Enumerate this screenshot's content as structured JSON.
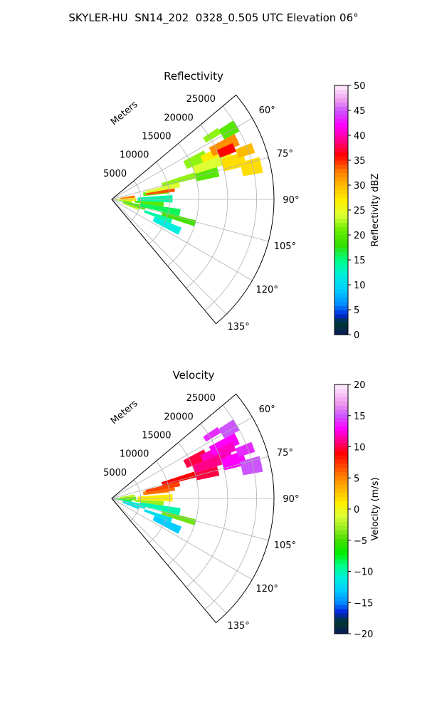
{
  "figure": {
    "suptitle": "SKYLER-HU  SN14_202  0328_0.505 UTC Elevation 06°"
  },
  "chart_data": [
    {
      "type": "heatmap",
      "projection": "polar-sector",
      "title": "Reflectivity",
      "radial_label": "Meters",
      "radial_ticks": [
        5000,
        10000,
        15000,
        20000,
        25000
      ],
      "radial_tick_labels": [
        "5000",
        "10000",
        "15000",
        "20000",
        "25000"
      ],
      "rmax": 28000,
      "theta_range_deg": [
        50,
        140
      ],
      "theta_ticks": [
        60,
        75,
        90,
        105,
        120,
        135
      ],
      "theta_tick_labels": [
        "60°",
        "75°",
        "90°",
        "105°",
        "120°",
        "135°"
      ],
      "grid": true,
      "colorbar": {
        "label": "Reflectivity dBZ",
        "range": [
          0,
          50
        ],
        "ticks": [
          0,
          5,
          10,
          15,
          20,
          25,
          30,
          35,
          40,
          45,
          50
        ],
        "tick_labels": [
          "0",
          "5",
          "10",
          "15",
          "20",
          "25",
          "30",
          "35",
          "40",
          "45",
          "50"
        ],
        "stops": [
          [
            0,
            "#0a1a5c"
          ],
          [
            2.5,
            "#003a2a"
          ],
          [
            4,
            "#0022dd"
          ],
          [
            6,
            "#0088ff"
          ],
          [
            9,
            "#00ccff"
          ],
          [
            12,
            "#00eedd"
          ],
          [
            15,
            "#00ff88"
          ],
          [
            18,
            "#33dd00"
          ],
          [
            21,
            "#66ee00"
          ],
          [
            24,
            "#ddff33"
          ],
          [
            27,
            "#ffee00"
          ],
          [
            30,
            "#ffbb00"
          ],
          [
            33,
            "#ff7700"
          ],
          [
            36,
            "#ff0000"
          ],
          [
            39,
            "#ff0088"
          ],
          [
            42,
            "#ff00ff"
          ],
          [
            45,
            "#cc55ff"
          ],
          [
            47,
            "#ee99ee"
          ],
          [
            50,
            "#fff0ff"
          ]
        ]
      },
      "cells": [
        {
          "theta": [
            86,
            95
          ],
          "r": [
            200,
            4200
          ],
          "value": 27
        },
        {
          "theta": [
            80,
            86
          ],
          "r": [
            1500,
            4000
          ],
          "value": 33
        },
        {
          "theta": [
            95,
            100
          ],
          "r": [
            300,
            3500
          ],
          "value": 22
        },
        {
          "theta": [
            100,
            108
          ],
          "r": [
            2000,
            6000
          ],
          "value": 20
        },
        {
          "theta": [
            108,
            112
          ],
          "r": [
            2000,
            5000
          ],
          "value": 23
        },
        {
          "theta": [
            86,
            93
          ],
          "r": [
            4500,
            10500
          ],
          "value": 14
        },
        {
          "theta": [
            93,
            98
          ],
          "r": [
            4000,
            9000
          ],
          "value": 20
        },
        {
          "theta": [
            78,
            84
          ],
          "r": [
            5500,
            10000
          ],
          "value": 21
        },
        {
          "theta": [
            76,
            80
          ],
          "r": [
            6000,
            12000
          ],
          "value": 24
        },
        {
          "theta": [
            80,
            83
          ],
          "r": [
            6000,
            11000
          ],
          "value": 34
        },
        {
          "theta": [
            72,
            76
          ],
          "r": [
            9000,
            15000
          ],
          "value": 22
        },
        {
          "theta": [
            98,
            104
          ],
          "r": [
            5000,
            12000
          ],
          "value": 16
        },
        {
          "theta": [
            104,
            108
          ],
          "r": [
            9000,
            15000
          ],
          "value": 19
        },
        {
          "theta": [
            108,
            112
          ],
          "r": [
            6000,
            11000
          ],
          "value": 14
        },
        {
          "theta": [
            112,
            118
          ],
          "r": [
            8000,
            13000
          ],
          "value": 12
        },
        {
          "theta": [
            62,
            68
          ],
          "r": [
            14000,
            18000
          ],
          "value": 22
        },
        {
          "theta": [
            64,
            70
          ],
          "r": [
            17000,
            22000
          ],
          "value": 27
        },
        {
          "theta": [
            62,
            67
          ],
          "r": [
            19000,
            24000
          ],
          "value": 32
        },
        {
          "theta": [
            68,
            73
          ],
          "r": [
            15000,
            21000
          ],
          "value": 24
        },
        {
          "theta": [
            70,
            76
          ],
          "r": [
            20000,
            24000
          ],
          "value": 28
        },
        {
          "theta": [
            73,
            78
          ],
          "r": [
            15000,
            19000
          ],
          "value": 20
        },
        {
          "theta": [
            74,
            80
          ],
          "r": [
            23000,
            26500
          ],
          "value": 28
        },
        {
          "theta": [
            57,
            62
          ],
          "r": [
            22000,
            25000
          ],
          "value": 20
        },
        {
          "theta": [
            56,
            59
          ],
          "r": [
            19000,
            22000
          ],
          "value": 22
        },
        {
          "theta": [
            68,
            72
          ],
          "r": [
            23000,
            26000
          ],
          "value": 30
        },
        {
          "theta": [
            65,
            69
          ],
          "r": [
            20000,
            23000
          ],
          "value": 36
        }
      ]
    },
    {
      "type": "heatmap",
      "projection": "polar-sector",
      "title": "Velocity",
      "radial_label": "Meters",
      "radial_ticks": [
        5000,
        10000,
        15000,
        20000,
        25000
      ],
      "radial_tick_labels": [
        "5000",
        "10000",
        "15000",
        "20000",
        "25000"
      ],
      "rmax": 28000,
      "theta_range_deg": [
        50,
        140
      ],
      "theta_ticks": [
        60,
        75,
        90,
        105,
        120,
        135
      ],
      "theta_tick_labels": [
        "60°",
        "75°",
        "90°",
        "105°",
        "120°",
        "135°"
      ],
      "grid": true,
      "colorbar": {
        "label": "Velocity (m/s)",
        "range": [
          -20,
          20
        ],
        "ticks": [
          -20,
          -15,
          -10,
          -5,
          0,
          5,
          10,
          15,
          20
        ],
        "tick_labels": [
          "−20",
          "−15",
          "−10",
          "−5",
          "0",
          "5",
          "10",
          "15",
          "20"
        ],
        "stops": [
          [
            -20,
            "#0a1a5c"
          ],
          [
            -18,
            "#003a2a"
          ],
          [
            -16.5,
            "#0022dd"
          ],
          [
            -15,
            "#0088ff"
          ],
          [
            -13,
            "#00ccff"
          ],
          [
            -11,
            "#00eedd"
          ],
          [
            -9,
            "#00ff88"
          ],
          [
            -7,
            "#00ee00"
          ],
          [
            -5,
            "#44dd00"
          ],
          [
            -3,
            "#99ee22"
          ],
          [
            -1,
            "#ddff33"
          ],
          [
            1,
            "#ffee00"
          ],
          [
            3,
            "#ffbb00"
          ],
          [
            5,
            "#ff8800"
          ],
          [
            7,
            "#ff4400"
          ],
          [
            9,
            "#ff0000"
          ],
          [
            11,
            "#ff0088"
          ],
          [
            13,
            "#ff00ff"
          ],
          [
            15,
            "#cc55ff"
          ],
          [
            17,
            "#ee99ee"
          ],
          [
            20,
            "#fff0ff"
          ]
        ]
      },
      "cells": [
        {
          "theta": [
            86,
            95
          ],
          "r": [
            200,
            4200
          ],
          "value": -4
        },
        {
          "theta": [
            80,
            86
          ],
          "r": [
            1500,
            4000
          ],
          "value": -2
        },
        {
          "theta": [
            95,
            100
          ],
          "r": [
            300,
            3500
          ],
          "value": -8
        },
        {
          "theta": [
            100,
            108
          ],
          "r": [
            2000,
            6000
          ],
          "value": -11
        },
        {
          "theta": [
            108,
            112
          ],
          "r": [
            2000,
            5000
          ],
          "value": -12
        },
        {
          "theta": [
            86,
            93
          ],
          "r": [
            4500,
            10500
          ],
          "value": 1
        },
        {
          "theta": [
            93,
            98
          ],
          "r": [
            4000,
            9000
          ],
          "value": -3
        },
        {
          "theta": [
            78,
            84
          ],
          "r": [
            5500,
            10000
          ],
          "value": 5
        },
        {
          "theta": [
            76,
            80
          ],
          "r": [
            6000,
            12000
          ],
          "value": 7
        },
        {
          "theta": [
            80,
            83
          ],
          "r": [
            6000,
            11000
          ],
          "value": 6
        },
        {
          "theta": [
            72,
            76
          ],
          "r": [
            9000,
            15000
          ],
          "value": 9
        },
        {
          "theta": [
            98,
            104
          ],
          "r": [
            5000,
            12000
          ],
          "value": -10
        },
        {
          "theta": [
            104,
            108
          ],
          "r": [
            9000,
            15000
          ],
          "value": -4
        },
        {
          "theta": [
            108,
            112
          ],
          "r": [
            6000,
            11000
          ],
          "value": -12
        },
        {
          "theta": [
            112,
            118
          ],
          "r": [
            8000,
            13000
          ],
          "value": -13
        },
        {
          "theta": [
            62,
            68
          ],
          "r": [
            14000,
            18000
          ],
          "value": 10
        },
        {
          "theta": [
            64,
            70
          ],
          "r": [
            17000,
            22000
          ],
          "value": 12
        },
        {
          "theta": [
            62,
            67
          ],
          "r": [
            19000,
            24000
          ],
          "value": 13
        },
        {
          "theta": [
            68,
            73
          ],
          "r": [
            15000,
            21000
          ],
          "value": 11
        },
        {
          "theta": [
            70,
            76
          ],
          "r": [
            20000,
            24000
          ],
          "value": 13
        },
        {
          "theta": [
            73,
            78
          ],
          "r": [
            15000,
            19000
          ],
          "value": 10
        },
        {
          "theta": [
            74,
            80
          ],
          "r": [
            23000,
            26500
          ],
          "value": 15
        },
        {
          "theta": [
            57,
            62
          ],
          "r": [
            22000,
            25000
          ],
          "value": 15
        },
        {
          "theta": [
            56,
            59
          ],
          "r": [
            19000,
            22000
          ],
          "value": 14
        },
        {
          "theta": [
            68,
            72
          ],
          "r": [
            23000,
            26000
          ],
          "value": 14
        },
        {
          "theta": [
            65,
            69
          ],
          "r": [
            20000,
            23000
          ],
          "value": 12
        }
      ]
    }
  ]
}
